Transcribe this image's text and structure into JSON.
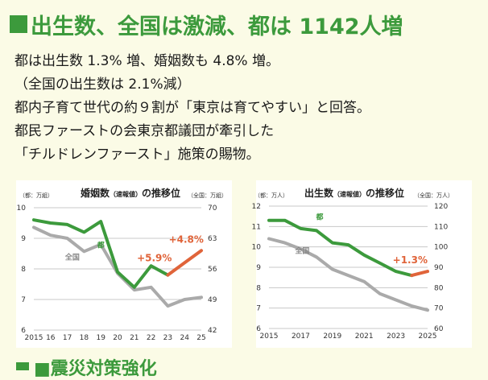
{
  "headline": "出生数、全国は激減、都は 1142人増",
  "body_lines": [
    "都は出生数 1.3% 増、婚姻数も 4.8% 増。",
    "（全国の出生数は 2.1%減）",
    "都内子育て世代の約９割が「東京は育てやすい」と回答。",
    "都民ファーストの会東京都議団が牽引した",
    "「チルドレンファースト」施策の賜物。"
  ],
  "next_heading_cut": "■震災対策強化",
  "colors": {
    "tokyo": "#3c9a3c",
    "national": "#aaaaaa",
    "highlight": "#e0643a",
    "headline": "#3c9a3c"
  },
  "chart_data": [
    {
      "type": "line",
      "title": "婚姻数（速報値）の推移位",
      "title_main_1": "婚姻数",
      "title_small": "（速報値）",
      "title_main_2": "の推移位",
      "left_axis_label": "（都：万組）",
      "right_axis_label": "（全国：万組）",
      "x": [
        2015,
        2016,
        2017,
        2018,
        2019,
        2020,
        2021,
        2022,
        2023,
        2024,
        2025
      ],
      "x_tick_labels": [
        "2015",
        "16",
        "17",
        "18",
        "19",
        "20",
        "21",
        "22",
        "23",
        "24",
        "25"
      ],
      "left_ylim": [
        6,
        10
      ],
      "left_yticks": [
        6,
        7,
        8,
        9,
        10
      ],
      "right_ylim": [
        42,
        70
      ],
      "right_yticks": [
        42,
        49,
        56,
        63,
        70
      ],
      "series": [
        {
          "name": "都",
          "axis": "left",
          "color": "#3c9a3c",
          "x": [
            2015,
            2016,
            2017,
            2018,
            2019,
            2020,
            2021,
            2022,
            2023
          ],
          "values": [
            9.6,
            9.5,
            9.45,
            9.2,
            9.55,
            7.9,
            7.4,
            8.1,
            7.8
          ]
        },
        {
          "name": "都（増加）",
          "axis": "left",
          "color": "#e0643a",
          "x": [
            2023,
            2024,
            2025
          ],
          "values": [
            7.8,
            8.2,
            8.6
          ]
        },
        {
          "name": "全国",
          "axis": "right",
          "color": "#aaaaaa",
          "x": [
            2015,
            2016,
            2017,
            2018,
            2019,
            2020,
            2021,
            2022,
            2023,
            2024,
            2025
          ],
          "values": [
            65.5,
            63.7,
            63.0,
            60.0,
            61.6,
            55.0,
            51.2,
            51.8,
            47.5,
            49.0,
            49.5
          ]
        }
      ],
      "annotations": [
        {
          "text": "都",
          "color": "#3c9a3c",
          "x": 2019,
          "y": 8.7,
          "axis": "left"
        },
        {
          "text": "全国",
          "color": "#888888",
          "x": 2017.3,
          "y": 8.3,
          "axis": "left"
        },
        {
          "text": "+5.9%",
          "color": "#e0643a",
          "x": 2022.2,
          "y": 8.25,
          "axis": "left"
        },
        {
          "text": "+4.8%",
          "color": "#e0643a",
          "x": 2024.1,
          "y": 8.85,
          "axis": "left"
        }
      ]
    },
    {
      "type": "line",
      "title": "出生数（速報値）の推移位",
      "title_main_1": "出生数",
      "title_small": "（速報値）",
      "title_main_2": "の推移位",
      "left_axis_label": "（都：万人）",
      "right_axis_label": "（全国：万人）",
      "x": [
        2015,
        2016,
        2017,
        2018,
        2019,
        2020,
        2021,
        2022,
        2023,
        2024,
        2025
      ],
      "x_tick_labels": [
        "2015",
        "2017",
        "2019",
        "2021",
        "2023",
        "2025"
      ],
      "x_tick_values": [
        2015,
        2017,
        2019,
        2021,
        2023,
        2025
      ],
      "left_ylim": [
        6,
        12
      ],
      "left_yticks": [
        6,
        7,
        8,
        9,
        10,
        11,
        12
      ],
      "right_ylim": [
        60,
        120
      ],
      "right_yticks": [
        60,
        70,
        80,
        90,
        100,
        110,
        120
      ],
      "series": [
        {
          "name": "都",
          "axis": "left",
          "color": "#3c9a3c",
          "x": [
            2015,
            2016,
            2017,
            2018,
            2019,
            2020,
            2021,
            2022,
            2023,
            2024
          ],
          "values": [
            11.3,
            11.3,
            10.9,
            10.8,
            10.2,
            10.1,
            9.6,
            9.2,
            8.8,
            8.6
          ]
        },
        {
          "name": "都（増加）",
          "axis": "left",
          "color": "#e0643a",
          "x": [
            2024,
            2025
          ],
          "values": [
            8.6,
            8.8
          ]
        },
        {
          "name": "全国",
          "axis": "right",
          "color": "#aaaaaa",
          "x": [
            2015,
            2016,
            2017,
            2018,
            2019,
            2020,
            2021,
            2022,
            2023,
            2024,
            2025
          ],
          "values": [
            104,
            102,
            99,
            95,
            89,
            86,
            83,
            77,
            74,
            71,
            69
          ]
        }
      ],
      "annotations": [
        {
          "text": "都",
          "color": "#3c9a3c",
          "x": 2018.2,
          "y": 11.35,
          "axis": "left"
        },
        {
          "text": "全国",
          "color": "#888888",
          "x": 2017.1,
          "y": 9.7,
          "axis": "left"
        },
        {
          "text": "+1.3%",
          "color": "#e0643a",
          "x": 2023.9,
          "y": 9.2,
          "axis": "left"
        }
      ]
    }
  ]
}
